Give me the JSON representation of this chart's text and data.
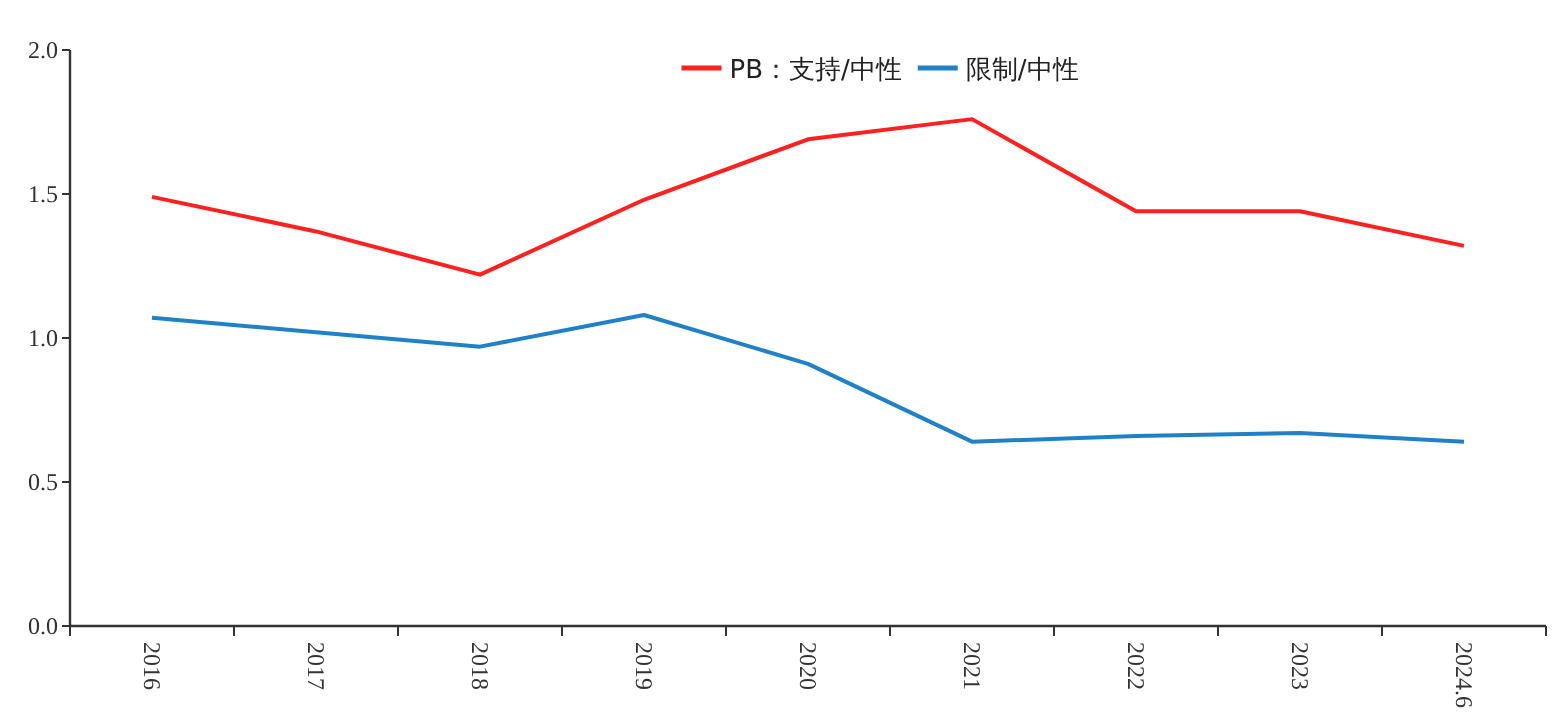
{
  "chart_data": {
    "type": "line",
    "categories": [
      "2016",
      "2017",
      "2018",
      "2019",
      "2020",
      "2021",
      "2022",
      "2023",
      "2024.6"
    ],
    "series": [
      {
        "name": "PB：支持/中性",
        "color": "#ff2020",
        "values": [
          1.49,
          1.37,
          1.22,
          1.48,
          1.69,
          1.76,
          1.44,
          1.44,
          1.32
        ]
      },
      {
        "name": "限制/中性",
        "color": "#1f82c8",
        "values": [
          1.07,
          1.02,
          0.97,
          1.08,
          0.91,
          0.64,
          0.66,
          0.67,
          0.64
        ]
      }
    ],
    "ylim": [
      0,
      2
    ],
    "yticks": [
      {
        "value": 0,
        "label": "0.0"
      },
      {
        "value": 0.5,
        "label": "0.5"
      },
      {
        "value": 1,
        "label": "1.0"
      },
      {
        "value": 1.5,
        "label": "1.5"
      },
      {
        "value": 2,
        "label": "2.0"
      }
    ],
    "grid": false,
    "legend": "top",
    "marker": "none",
    "line_style": "solid"
  }
}
